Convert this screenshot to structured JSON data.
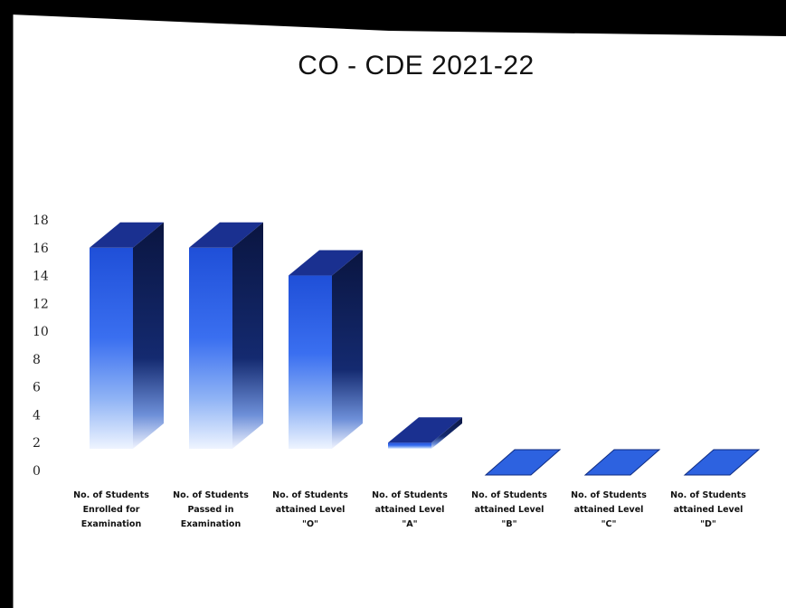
{
  "chart_data": {
    "type": "bar",
    "title": "CO - CDE 2021-22",
    "xlabel": "",
    "ylabel": "",
    "ylim": [
      0,
      18
    ],
    "yticks": [
      0,
      2,
      4,
      6,
      8,
      10,
      12,
      14,
      16,
      18
    ],
    "categories": [
      [
        "No. of Students",
        "Enrolled for",
        "Examination"
      ],
      [
        "No. of Students",
        "Passed in",
        "Examination"
      ],
      [
        "No. of Students",
        "attained Level",
        "\"O\""
      ],
      [
        "No. of Students",
        "attained Level",
        "\"A\""
      ],
      [
        "No. of Students",
        "attained Level",
        "\"B\""
      ],
      [
        "No. of Students",
        "attained Level",
        "\"C\""
      ],
      [
        "No. of Students",
        "attained Level",
        "\"D\""
      ]
    ],
    "values": [
      16,
      16,
      14,
      2,
      0,
      0,
      0
    ],
    "grid": false,
    "legend": "none",
    "colors": {
      "front_top": "#2a5ee8",
      "front_bottom": "#e8f0ff",
      "side": "#0e1f55",
      "top": "#1a3090",
      "flat": "#2d62e0"
    }
  }
}
